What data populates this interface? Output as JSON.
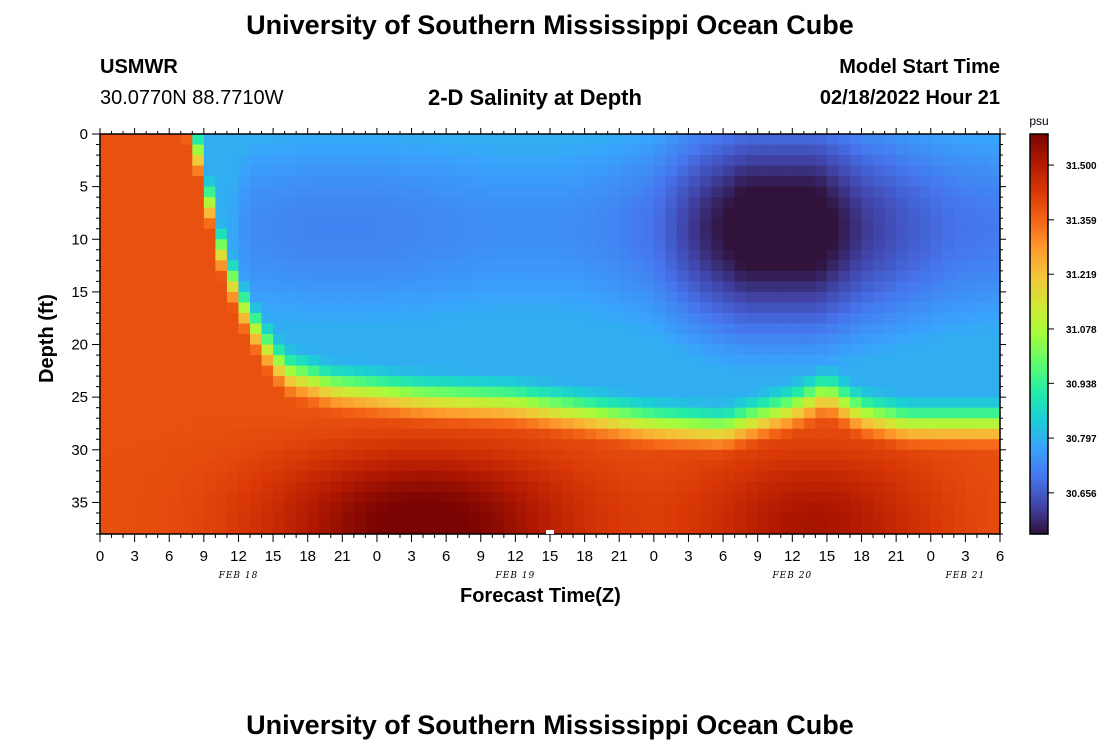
{
  "header": {
    "title_top": "University of Southern Mississippi Ocean Cube",
    "title_bottom": "University of Southern Mississippi Ocean Cube",
    "station": "USMWR",
    "coords": "30.0770N  88.7710W",
    "start_label": "Model Start Time",
    "start_value": "02/18/2022 Hour 21"
  },
  "chart_data": {
    "type": "heatmap",
    "title": "2-D Salinity at Depth",
    "xlabel": "Forecast Time(Z)",
    "ylabel": "Depth (ft)",
    "x_ticks": [
      "0",
      "3",
      "6",
      "9",
      "12",
      "15",
      "18",
      "21",
      "0",
      "3",
      "6",
      "9",
      "12",
      "15",
      "18",
      "21",
      "0",
      "3",
      "6",
      "9",
      "12",
      "15",
      "18",
      "21",
      "0",
      "3",
      "6"
    ],
    "x_range_hours": [
      0,
      78
    ],
    "day_labels": [
      {
        "label": "FEB 18",
        "hour": 12
      },
      {
        "label": "FEB 19",
        "hour": 36
      },
      {
        "label": "FEB 20",
        "hour": 60
      },
      {
        "label": "FEB 21",
        "hour": 75
      }
    ],
    "y_ticks": [
      "0",
      "5",
      "10",
      "15",
      "20",
      "25",
      "30",
      "35"
    ],
    "y_range": [
      0,
      38
    ],
    "y_inverted": true,
    "colorbar": {
      "unit": "psu",
      "ticks": [
        "31.500",
        "31.359",
        "31.219",
        "31.078",
        "30.938",
        "30.797",
        "30.656"
      ],
      "range": [
        30.55,
        31.58
      ],
      "colors": [
        "#30123b",
        "#4145ab",
        "#4675ed",
        "#39a2fc",
        "#1bcfd4",
        "#24eca6",
        "#61fc6c",
        "#a4fc3b",
        "#d1e834",
        "#f3c63a",
        "#fe9b2d",
        "#f36315",
        "#d93806",
        "#b11901",
        "#7a0402"
      ]
    },
    "model_grid": {
      "time_step_hours": 1,
      "depth_levels": 38,
      "pattern": "high salinity (31.3–31.55 psu) in the bottom layer and early hours; fresher surface water (30.8–31.0 psu) from ~hour 15 to 48; freshest surface water (~30.6 psu) around hours 54–66; bottom maximum ~31.55 psu near hour 28 and hour 60"
    }
  }
}
